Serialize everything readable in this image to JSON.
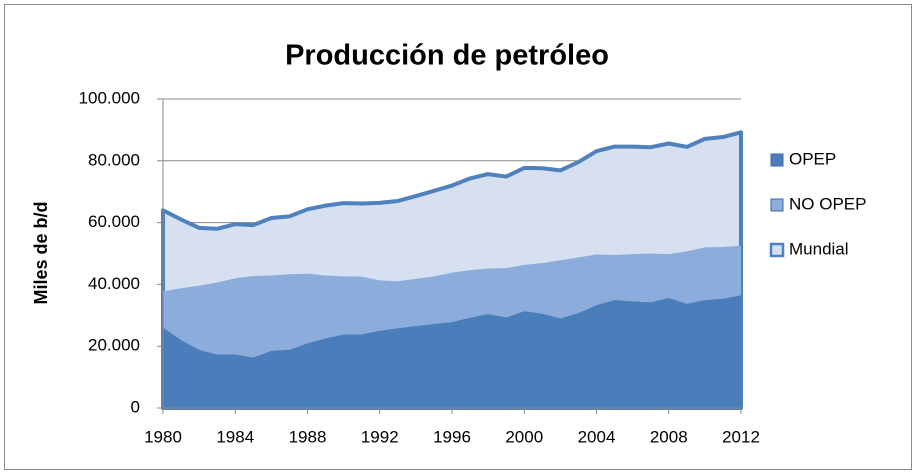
{
  "chart_data": {
    "type": "area",
    "title": "Producción de petróleo",
    "y_label": "Miles de b/d",
    "x": [
      1980,
      1981,
      1982,
      1983,
      1984,
      1985,
      1986,
      1987,
      1988,
      1989,
      1990,
      1991,
      1992,
      1993,
      1994,
      1995,
      1996,
      1997,
      1998,
      1999,
      2000,
      2001,
      2002,
      2003,
      2004,
      2005,
      2006,
      2007,
      2008,
      2009,
      2010,
      2011,
      2012
    ],
    "xlim": [
      1980,
      2012
    ],
    "xticks": [
      1980,
      1984,
      1988,
      1992,
      1996,
      2000,
      2004,
      2008,
      2012
    ],
    "ylim": [
      0,
      100000
    ],
    "yticks": [
      0,
      {
        "value": 20000,
        "label": "20.000"
      },
      {
        "value": 40000,
        "label": "40.000"
      },
      {
        "value": 60000,
        "label": "60.000"
      },
      {
        "value": 80000,
        "label": "80.000"
      },
      {
        "value": 100000,
        "label": "100.000"
      }
    ],
    "grid": true,
    "legend": "right",
    "series": [
      {
        "name": "OPEP",
        "color": "#4a7ebb",
        "values": [
          26000,
          22000,
          18800,
          17300,
          17300,
          16300,
          18500,
          18800,
          20900,
          22500,
          23800,
          23800,
          25000,
          25800,
          26500,
          27200,
          27800,
          29200,
          30400,
          29300,
          31300,
          30500,
          29000,
          30700,
          33300,
          34900,
          34500,
          34200,
          35600,
          33700,
          34900,
          35300,
          36500
        ]
      },
      {
        "name": "NO OPEP",
        "color": "#8caddb",
        "values": [
          37800,
          38700,
          39600,
          40600,
          42000,
          42700,
          42900,
          43300,
          43500,
          42900,
          42600,
          42500,
          41300,
          41000,
          41800,
          42600,
          43800,
          44600,
          45100,
          45300,
          46300,
          46900,
          47800,
          48700,
          49700,
          49500,
          49800,
          50000,
          49800,
          50700,
          52000,
          52100,
          52500
        ]
      },
      {
        "name": "Mundial",
        "color": "#d6e0f0",
        "line_color": "#4f81bd",
        "values": [
          64000,
          61000,
          58300,
          58000,
          59500,
          59200,
          61500,
          62000,
          64300,
          65500,
          66300,
          66200,
          66400,
          67000,
          68600,
          70300,
          72000,
          74300,
          75700,
          74900,
          77700,
          77600,
          76900,
          79600,
          83100,
          84600,
          84600,
          84400,
          85600,
          84500,
          87100,
          87700,
          89200
        ]
      }
    ]
  }
}
